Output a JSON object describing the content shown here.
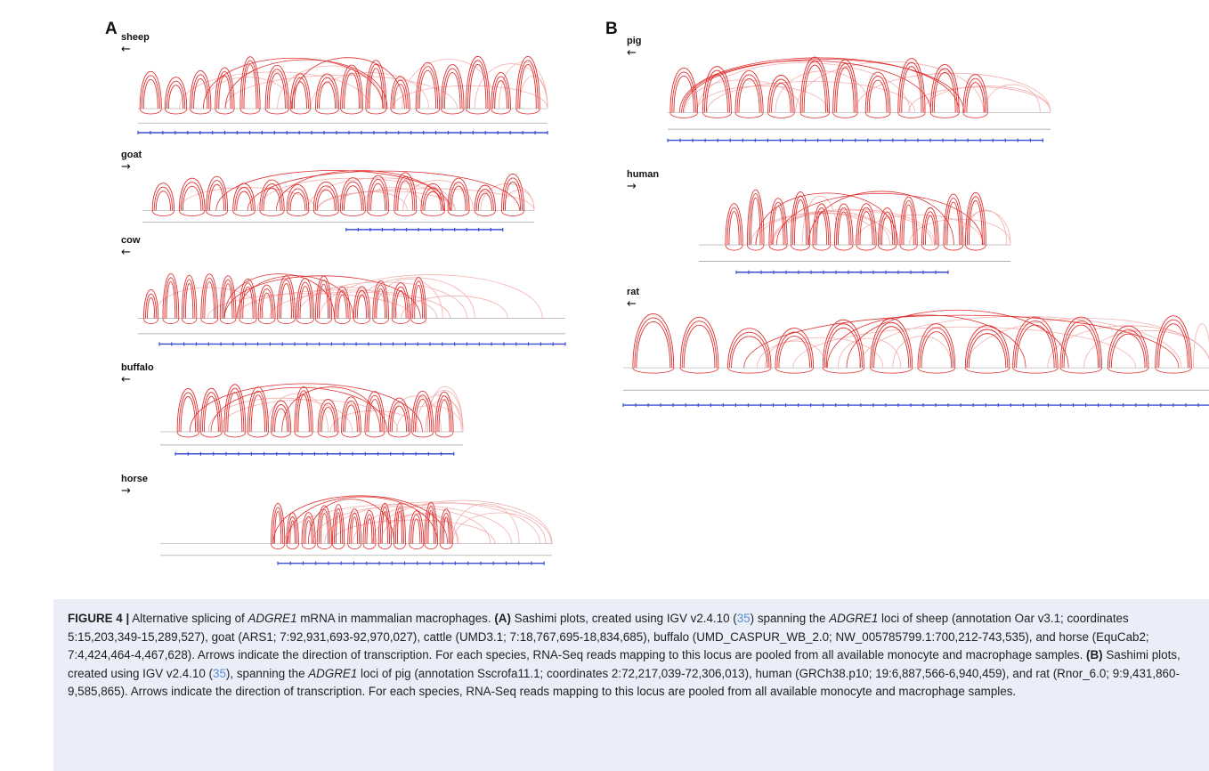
{
  "panels": {
    "A": {
      "label": "A",
      "species": [
        {
          "name": "sheep",
          "direction": "←"
        },
        {
          "name": "goat",
          "direction": "→"
        },
        {
          "name": "cow",
          "direction": "←"
        },
        {
          "name": "buffalo",
          "direction": "←"
        },
        {
          "name": "horse",
          "direction": "→"
        }
      ]
    },
    "B": {
      "label": "B",
      "species": [
        {
          "name": "pig",
          "direction": "←"
        },
        {
          "name": "human",
          "direction": "→"
        },
        {
          "name": "rat",
          "direction": "←"
        }
      ]
    }
  },
  "colors": {
    "junction": "#e03030",
    "junction_faint": "#f2b0b0",
    "gene_track": "#3a4fd0",
    "baseline": "#b8b8b8",
    "caption_bg": "#e9eef8",
    "ref_link": "#5b8fd0"
  },
  "caption": {
    "figure_label": "FIGURE 4 |",
    "title_pre": " Alternative splicing of ",
    "gene": "ADGRE1",
    "title_post": " mRNA in mammalian macrophages. ",
    "a_label": "(A)",
    "a_text_1": " Sashimi plots, created using IGV v2.4.10 (",
    "a_ref": "35",
    "a_text_2": ") spanning the ",
    "a_gene": "ADGRE1",
    "a_text_3": " loci of sheep (annotation Oar v3.1; coordinates 5:15,203,349-15,289,527), goat (ARS1; 7:92,931,693-92,970,027), cattle (UMD3.1; 7:18,767,695-18,834,685), buffalo (UMD_CASPUR_WB_2.0; NW_005785799.1:700,212-743,535), and horse (EquCab2; 7:4,424,464-4,467,628). Arrows indicate the direction of transcription. For each species, RNA-Seq reads mapping to this locus are pooled from all available monocyte and macrophage samples. ",
    "b_label": "(B)",
    "b_text_1": " Sashimi plots, created using IGV v2.4.10 (",
    "b_ref": "35",
    "b_text_2": "), spanning the ",
    "b_gene": "ADGRE1",
    "b_text_3": " loci of pig (annotation Sscrofa11.1; coordinates 2:72,217,039-72,306,013), human (GRCh38.p10; 19:6,887,566-6,940,459), and rat (Rnor_6.0; 9:9,431,860-9,585,865). Arrows indicate the direction of transcription. For each species, RNA-Seq reads mapping to this locus are pooled from all available monocyte and macrophage samples."
  }
}
